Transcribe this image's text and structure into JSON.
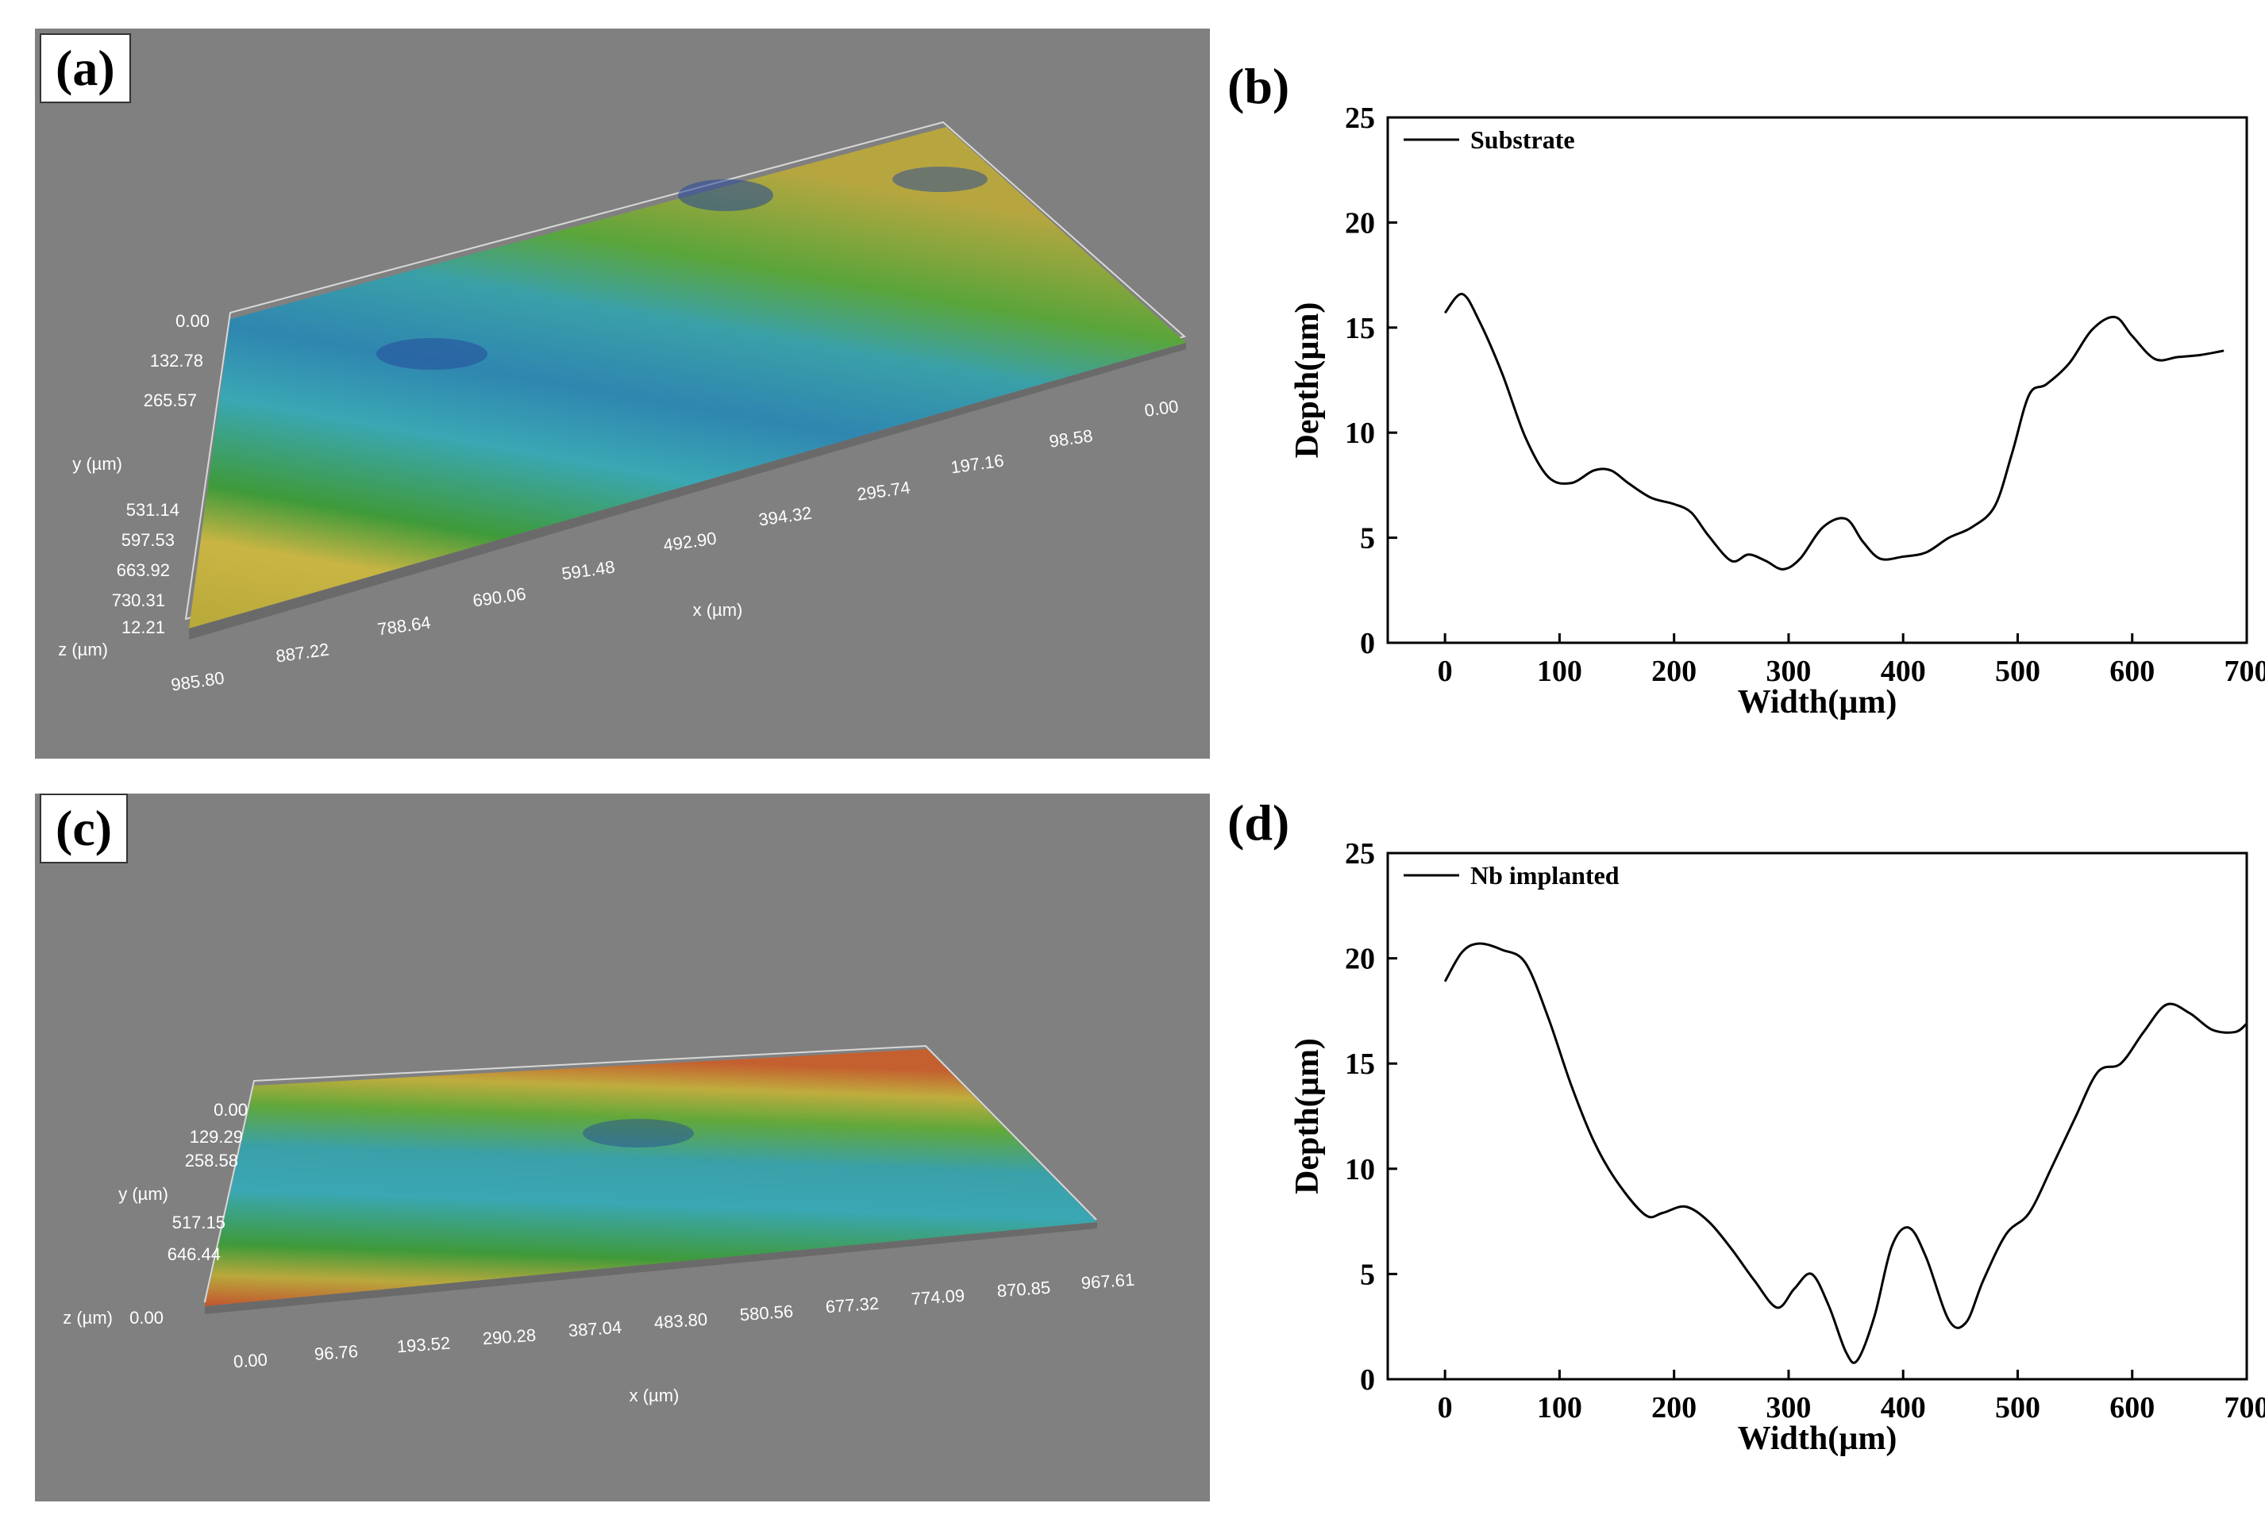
{
  "panels": {
    "a": {
      "tag": "(a)",
      "y_label": "y (µm)",
      "x_label": "x (µm)",
      "z_label": "z (µm)",
      "y_ticks": [
        "0.00",
        "132.78",
        "265.57",
        "531.14",
        "597.53",
        "663.92",
        "730.31"
      ],
      "z_ticks": [
        "12.21"
      ],
      "x_ticks": [
        "985.80",
        "887.22",
        "788.64",
        "690.06",
        "591.48",
        "492.90",
        "394.32",
        "295.74",
        "197.16",
        "98.58",
        "0.00"
      ]
    },
    "c": {
      "tag": "(c)",
      "y_label": "y (µm)",
      "x_label": "x (µm)",
      "z_label": "z (µm)",
      "y_ticks": [
        "0.00",
        "129.29",
        "258.58",
        "517.15",
        "646.44"
      ],
      "z_ticks": [
        "0.00"
      ],
      "x_ticks": [
        "0.00",
        "96.76",
        "193.52",
        "290.28",
        "387.04",
        "483.80",
        "580.56",
        "677.32",
        "774.09",
        "870.85",
        "967.61"
      ]
    }
  },
  "colors": {
    "panel_bg": "#808080",
    "line": "#000000",
    "surface_green": "#3a9a3a",
    "surface_yellow": "#b8b23a",
    "surface_blue": "#3aa0b8"
  },
  "chart_data": [
    {
      "type": "line",
      "tag": "(b)",
      "xlabel": "Width(µm)",
      "ylabel": "Depth(µm)",
      "xlim": [
        -50,
        700
      ],
      "ylim": [
        0,
        25
      ],
      "xticks": [
        0,
        100,
        200,
        300,
        400,
        500,
        600,
        700
      ],
      "yticks": [
        0,
        5,
        10,
        15,
        20,
        25
      ],
      "legend": "top-left",
      "series": [
        {
          "name": "Substrate",
          "x": [
            0,
            15,
            30,
            50,
            70,
            90,
            110,
            130,
            145,
            160,
            180,
            200,
            215,
            230,
            250,
            265,
            280,
            295,
            310,
            330,
            350,
            365,
            380,
            400,
            420,
            440,
            460,
            480,
            495,
            510,
            525,
            545,
            565,
            585,
            600,
            620,
            640,
            660,
            680
          ],
          "y": [
            15.7,
            16.6,
            15.3,
            12.8,
            9.8,
            7.9,
            7.6,
            8.2,
            8.2,
            7.6,
            6.9,
            6.6,
            6.2,
            5.1,
            3.9,
            4.2,
            3.9,
            3.5,
            4.0,
            5.5,
            5.9,
            4.8,
            4.0,
            4.1,
            4.3,
            5.0,
            5.5,
            6.5,
            9.0,
            11.8,
            12.3,
            13.3,
            14.9,
            15.5,
            14.6,
            13.5,
            13.6,
            13.7,
            13.9
          ]
        }
      ]
    },
    {
      "type": "line",
      "tag": "(d)",
      "xlabel": "Width(µm)",
      "ylabel": "Depth(µm)",
      "xlim": [
        -50,
        700
      ],
      "ylim": [
        0,
        25
      ],
      "xticks": [
        0,
        100,
        200,
        300,
        400,
        500,
        600,
        700
      ],
      "yticks": [
        0,
        5,
        10,
        15,
        20,
        25
      ],
      "legend": "top-left",
      "series": [
        {
          "name": "Nb implanted",
          "x": [
            0,
            15,
            30,
            50,
            70,
            90,
            110,
            130,
            150,
            175,
            190,
            210,
            230,
            250,
            270,
            290,
            305,
            320,
            335,
            350,
            360,
            375,
            390,
            405,
            420,
            440,
            455,
            470,
            490,
            510,
            530,
            550,
            570,
            590,
            610,
            630,
            650,
            670,
            690,
            700
          ],
          "y": [
            18.9,
            20.3,
            20.7,
            20.4,
            19.8,
            17.2,
            14.0,
            11.3,
            9.4,
            7.8,
            7.9,
            8.2,
            7.5,
            6.2,
            4.7,
            3.4,
            4.3,
            5.0,
            3.5,
            1.3,
            0.9,
            3.0,
            6.3,
            7.2,
            5.8,
            2.8,
            2.7,
            4.7,
            6.9,
            7.9,
            10.1,
            12.4,
            14.6,
            15.0,
            16.5,
            17.8,
            17.4,
            16.6,
            16.5,
            16.9
          ]
        }
      ]
    }
  ]
}
